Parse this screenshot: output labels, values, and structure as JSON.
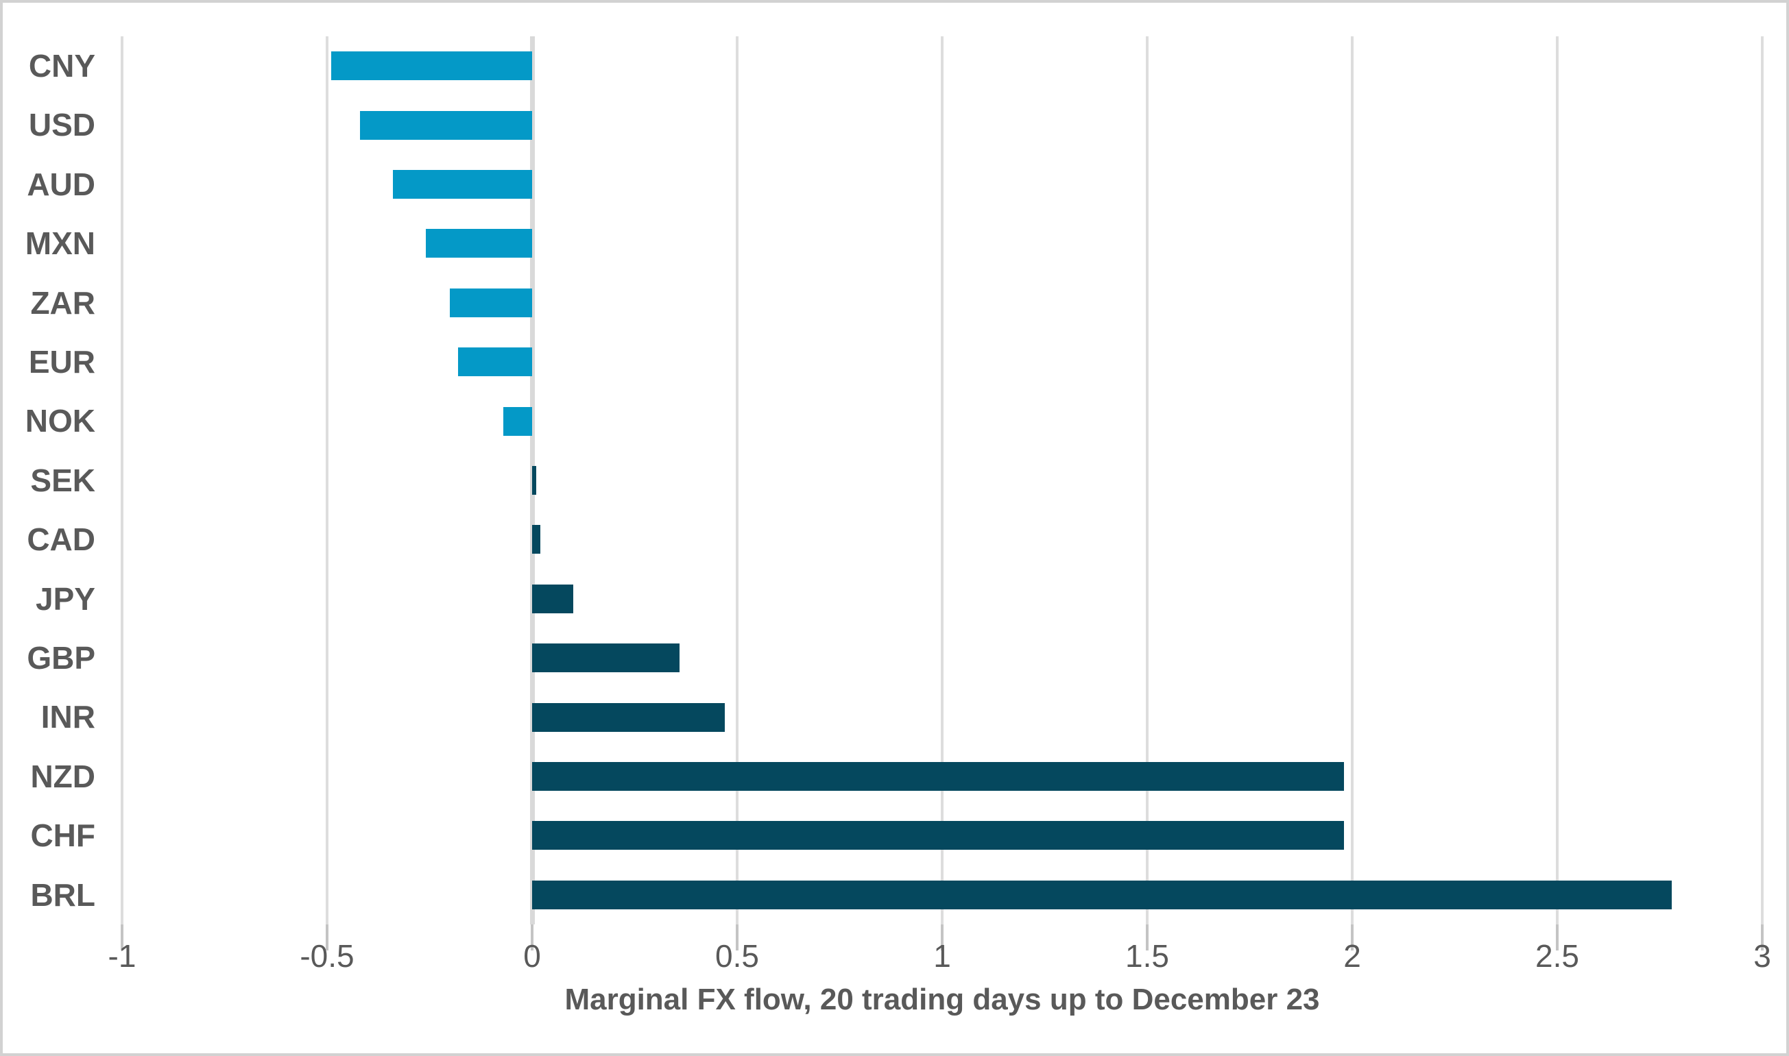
{
  "chart_data": {
    "type": "bar",
    "orientation": "horizontal",
    "title": "Marginal FX flow, 20 trading days up to December 23",
    "categories": [
      "CNY",
      "USD",
      "AUD",
      "MXN",
      "ZAR",
      "EUR",
      "NOK",
      "SEK",
      "CAD",
      "JPY",
      "GBP",
      "INR",
      "NZD",
      "CHF",
      "BRL"
    ],
    "values": [
      -0.49,
      -0.42,
      -0.34,
      -0.26,
      -0.2,
      -0.18,
      -0.07,
      0.01,
      0.02,
      0.1,
      0.36,
      0.47,
      1.98,
      1.98,
      2.78
    ],
    "xlim": [
      -1,
      3
    ],
    "x_ticks": [
      -1,
      -0.5,
      0,
      0.5,
      1,
      1.5,
      2,
      2.5,
      3
    ],
    "x_tick_labels": [
      "-1",
      "-0.5",
      "0",
      "0.5",
      "1",
      "1.5",
      "2",
      "2.5",
      "3"
    ],
    "ylabel": "",
    "xlabel": "Marginal FX flow, 20 trading days up to December 23",
    "grid": "vertical-major-on",
    "legend": "none",
    "colors": {
      "negative_bar": "#0499C7",
      "positive_bar": "#05485E",
      "axis_text": "#595959",
      "gridline": "#DDDDDD",
      "zero_line": "#D9D9D9",
      "tick_mark": "#C4C4C4",
      "canvas_border": "#D2D2D2",
      "background": "#FFFFFF"
    }
  }
}
